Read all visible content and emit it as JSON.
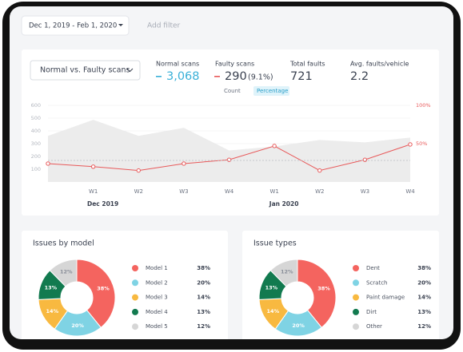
{
  "filters": {
    "date_range": "Dec 1, 2019  -  Feb 1, 2020",
    "add_filter": "Add filter"
  },
  "kpis": [
    {
      "label": "Normal scans",
      "value": "3,068"
    },
    {
      "label": "Faulty scans",
      "value": "290",
      "note": "(9.1%)"
    },
    {
      "label": "Total faults",
      "value": "721"
    },
    {
      "label": "Avg. faults/vehicle",
      "value": "2.2"
    }
  ],
  "toggle": [
    "Count",
    "Percentage"
  ],
  "chart_data": [
    {
      "type": "line",
      "title": "Normal vs. Faulty scans",
      "categories": [
        null,
        "W1",
        "W2",
        "W3",
        "W4",
        "W1",
        "W2",
        "W3",
        "W4"
      ],
      "x_groups": [
        "Dec 2019",
        "Jan 2020"
      ],
      "series": [
        {
          "type": "area",
          "color": "#ececec",
          "values": [
            361,
            487,
            361,
            424,
            247,
            278,
            329,
            310,
            348
          ]
        },
        {
          "type": "line",
          "color": "#e8595a",
          "axis": "y2",
          "values": [
            24,
            20,
            15,
            24,
            29,
            47,
            15,
            29,
            49
          ]
        }
      ],
      "ylim": [
        0,
        600
      ],
      "yticks": [
        100,
        200,
        300,
        400,
        500,
        600
      ],
      "y2lim": [
        0,
        100
      ],
      "y2ticks": [
        {
          "value": 50,
          "label": "50%"
        },
        {
          "value": 100,
          "label": "100%"
        }
      ],
      "grid": true
    },
    {
      "type": "pie",
      "title": "Issues by model",
      "categories": [
        "Model 1",
        "Model 2",
        "Model 3",
        "Model 4",
        "Model 5"
      ],
      "values": [
        38,
        20,
        14,
        13,
        12
      ],
      "value_labels": [
        "38%",
        "20%",
        "14%",
        "13%",
        "12%"
      ],
      "colors": [
        "#f4645f",
        "#7fd3e4",
        "#f8b940",
        "#127a4f",
        "#d6d6d6"
      ]
    },
    {
      "type": "pie",
      "title": "Issue types",
      "categories": [
        "Dent",
        "Scratch",
        "Paint damage",
        "Dirt",
        "Other"
      ],
      "values": [
        38,
        20,
        14,
        13,
        12
      ],
      "value_labels": [
        "38%",
        "20%",
        "14%",
        "13%",
        "12%"
      ],
      "colors": [
        "#f4645f",
        "#7fd3e4",
        "#f8b940",
        "#127a4f",
        "#d6d6d6"
      ]
    }
  ]
}
